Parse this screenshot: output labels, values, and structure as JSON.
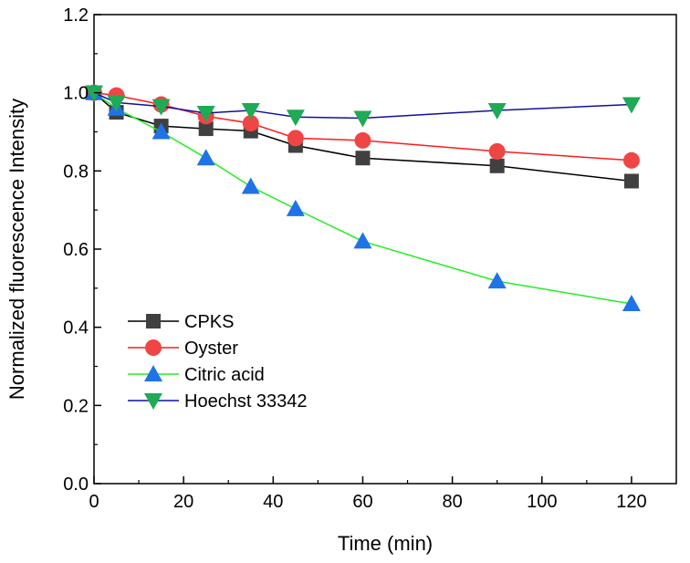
{
  "chart_data": {
    "type": "line",
    "title": "",
    "xlabel": "Time (min)",
    "ylabel": "Normalized fluorescence Intensity",
    "xlim": [
      0,
      130
    ],
    "ylim": [
      0.0,
      1.2
    ],
    "x_ticks": [
      0,
      20,
      40,
      60,
      80,
      100,
      120
    ],
    "x_tick_labels": [
      "0",
      "20",
      "40",
      "60",
      "80",
      "100",
      "120"
    ],
    "y_ticks": [
      0.0,
      0.2,
      0.4,
      0.6,
      0.8,
      1.0,
      1.2
    ],
    "y_tick_labels": [
      "0.0",
      "0.2",
      "0.4",
      "0.6",
      "0.8",
      "1.0",
      "1.2"
    ],
    "grid": false,
    "legend_position": "bottom-left",
    "x": [
      0,
      5,
      15,
      25,
      35,
      45,
      60,
      90,
      120
    ],
    "series": [
      {
        "name": "CPKS",
        "marker": "square",
        "line_color": "#000000",
        "marker_color": "#404040",
        "values": [
          1.0,
          0.95,
          0.915,
          0.908,
          0.902,
          0.865,
          0.833,
          0.813,
          0.774
        ]
      },
      {
        "name": "Oyster",
        "marker": "circle",
        "line_color": "#ff1a1a",
        "marker_color": "#f04545",
        "values": [
          1.0,
          0.993,
          0.97,
          0.94,
          0.922,
          0.884,
          0.878,
          0.85,
          0.827
        ]
      },
      {
        "name": "Citric acid",
        "marker": "triangle-up",
        "line_color": "#22ee22",
        "marker_color": "#1f73e6",
        "values": [
          1.0,
          0.96,
          0.9,
          0.833,
          0.76,
          0.703,
          0.62,
          0.518,
          0.46
        ]
      },
      {
        "name": "Hoechst 33342",
        "marker": "triangle-down",
        "line_color": "#1010a0",
        "marker_color": "#1faa55",
        "values": [
          1.0,
          0.975,
          0.965,
          0.948,
          0.955,
          0.938,
          0.935,
          0.955,
          0.97
        ]
      }
    ]
  }
}
